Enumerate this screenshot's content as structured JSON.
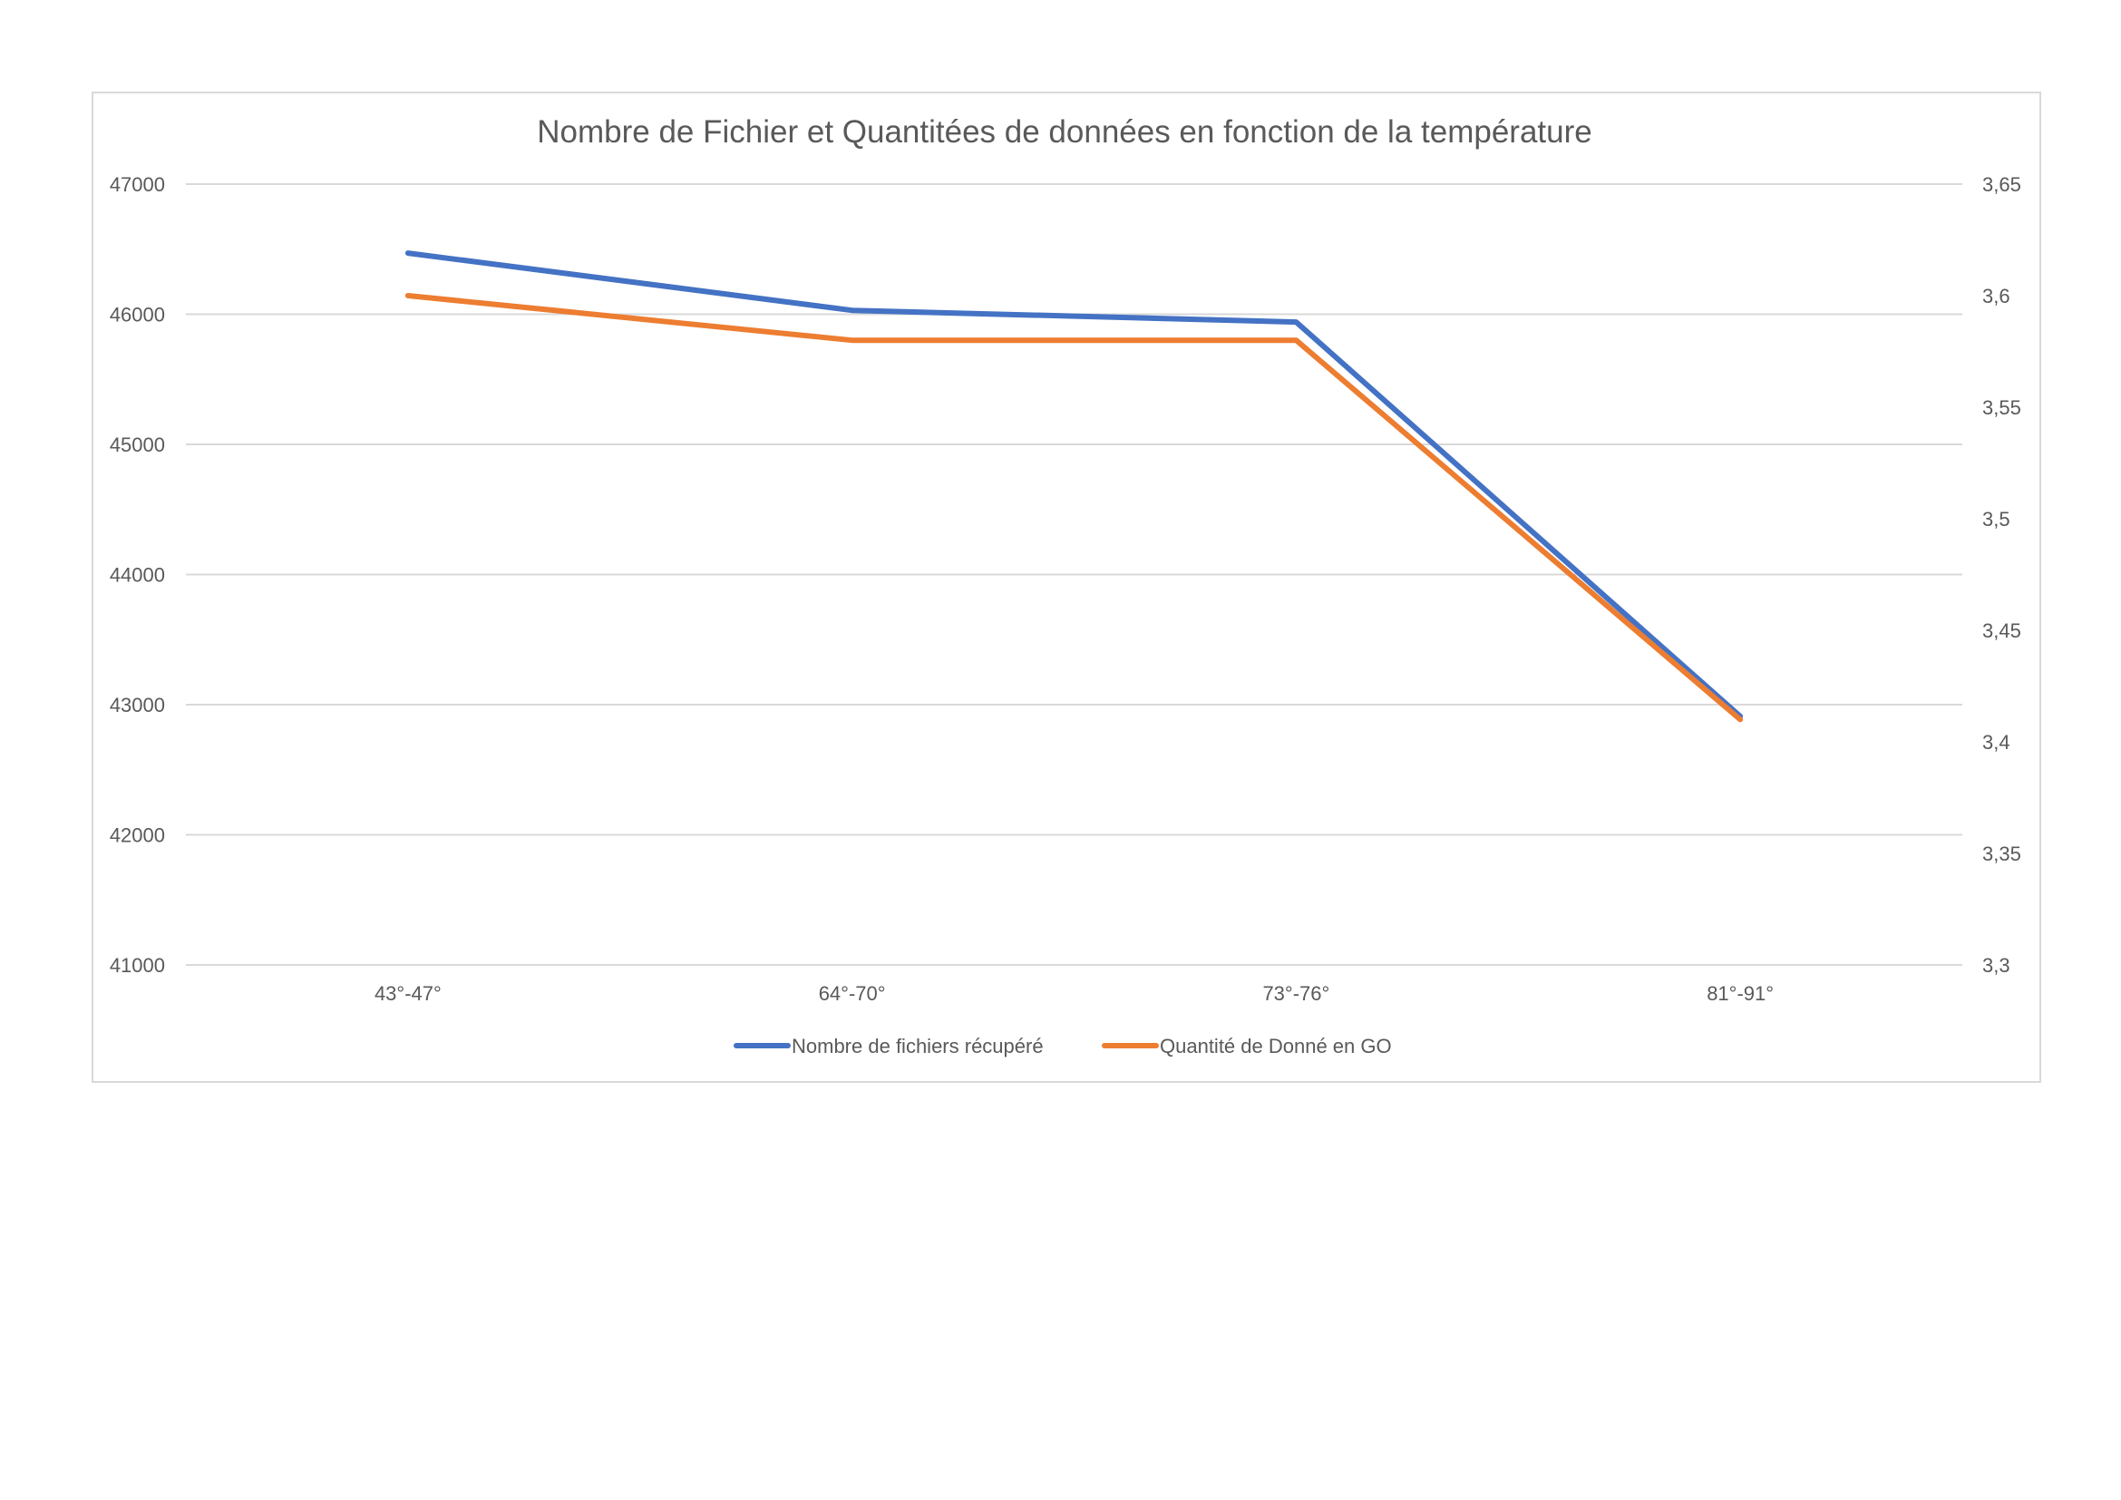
{
  "chart_data": {
    "type": "line",
    "title": "Nombre de Fichier et Quantitées de données en fonction de la température",
    "categories": [
      "43°-47°",
      "64°-70°",
      "73°-76°",
      "81°-91°"
    ],
    "y_left": {
      "min": 41000,
      "max": 47000,
      "step": 1000,
      "tick_labels": [
        "41000",
        "42000",
        "43000",
        "44000",
        "45000",
        "46000",
        "47000"
      ]
    },
    "y_right": {
      "min": 3.3,
      "max": 3.65,
      "step": 0.05,
      "tick_labels": [
        "3,3",
        "3,35",
        "3,4",
        "3,45",
        "3,5",
        "3,55",
        "3,6",
        "3,65"
      ]
    },
    "grid": true,
    "legend_position": "bottom",
    "series": [
      {
        "name": "Nombre de fichiers récupéré",
        "axis": "left",
        "color": "#4472C4",
        "values": [
          46470,
          46030,
          45940,
          42910
        ]
      },
      {
        "name": "Quantité de Donné en GO",
        "axis": "right",
        "color": "#ED7D31",
        "values": [
          3.6,
          3.58,
          3.58,
          3.41
        ]
      }
    ]
  }
}
